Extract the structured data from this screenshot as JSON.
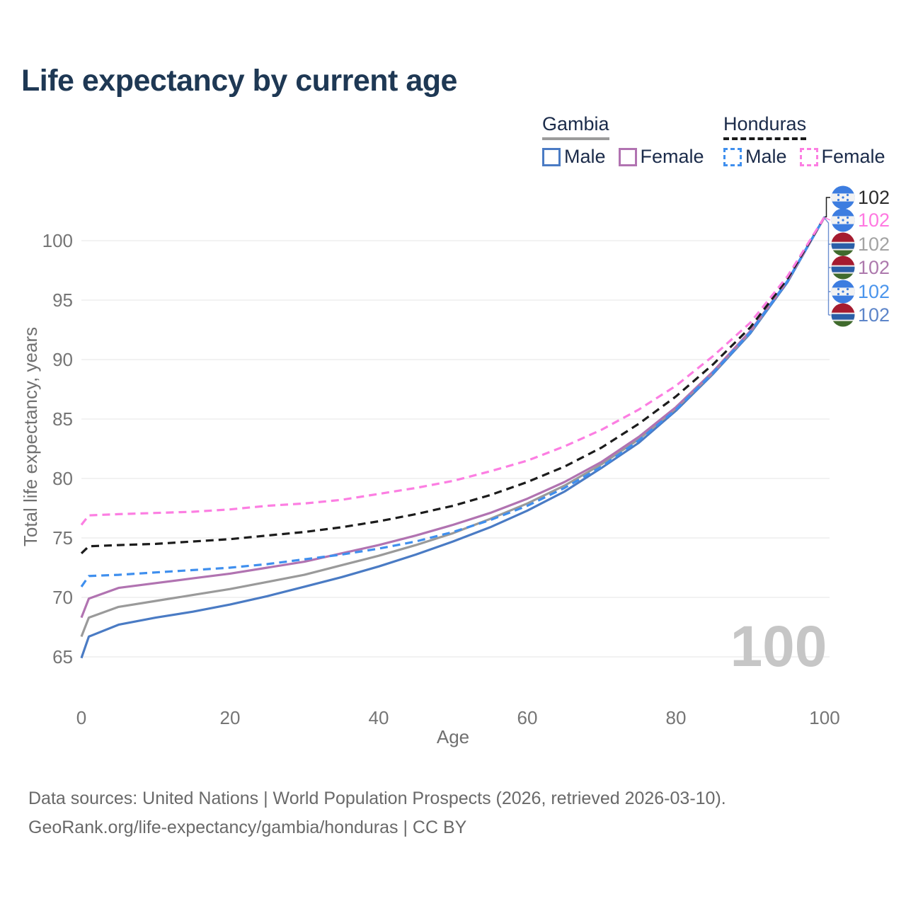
{
  "title": "Life expectancy by current age",
  "legend": {
    "groups": [
      {
        "country": "Gambia",
        "line_style": "solid",
        "line_color": "#9b9b9b",
        "items": [
          {
            "label": "Male",
            "swatch_color": "#4a7bc4",
            "dashed": false
          },
          {
            "label": "Female",
            "swatch_color": "#b173b1",
            "dashed": false
          }
        ]
      },
      {
        "country": "Honduras",
        "line_style": "dashed",
        "line_color": "#1a1a1a",
        "items": [
          {
            "label": "Male",
            "swatch_color": "#3f8fee",
            "dashed": true
          },
          {
            "label": "Female",
            "swatch_color": "#fc7ee2",
            "dashed": true
          }
        ]
      }
    ]
  },
  "watermark_age_counter": "100",
  "footer": {
    "line1": "Data sources: United Nations | World Population Prospects (2026, retrieved 2026-03-10).",
    "line2": "GeoRank.org/life-expectancy/gambia/honduras | CC BY"
  },
  "chart_data": {
    "type": "line",
    "title": "Life expectancy by current age",
    "xlabel": "Age",
    "ylabel": "Total life expectancy, years",
    "x_ticks": [
      0,
      20,
      40,
      60,
      80,
      100
    ],
    "y_ticks": [
      65,
      70,
      75,
      80,
      85,
      90,
      95,
      100
    ],
    "xlim": [
      0,
      100
    ],
    "ylim": [
      63.5,
      104
    ],
    "grid": "horizontal",
    "legend_position": "top-right",
    "x": [
      0,
      1,
      5,
      10,
      15,
      20,
      25,
      30,
      35,
      40,
      45,
      50,
      55,
      60,
      65,
      70,
      75,
      80,
      85,
      90,
      95,
      100
    ],
    "series": [
      {
        "id": "gambia-male",
        "name": "Gambia Male",
        "country": "Gambia",
        "sex": "Male",
        "color": "#4a7bc4",
        "dashed": false,
        "flag": "gambia",
        "end_label": "102",
        "end_label_color": "#5d85c9",
        "label_row": 5,
        "values": [
          64.9,
          66.7,
          67.7,
          68.3,
          68.8,
          69.4,
          70.1,
          70.9,
          71.7,
          72.6,
          73.6,
          74.7,
          75.9,
          77.3,
          78.9,
          80.9,
          83.0,
          85.7,
          88.8,
          92.2,
          96.5,
          102
        ]
      },
      {
        "id": "gambia-total",
        "name": "Gambia",
        "country": "Gambia",
        "sex": "Both",
        "color": "#9a9a9a",
        "dashed": false,
        "flag": "gambia",
        "end_label": "102",
        "end_label_color": "#a3a3a3",
        "label_row": 2,
        "values": [
          66.7,
          68.3,
          69.2,
          69.7,
          70.2,
          70.7,
          71.3,
          71.9,
          72.7,
          73.5,
          74.4,
          75.4,
          76.6,
          77.9,
          79.4,
          81.2,
          83.3,
          85.9,
          88.9,
          92.3,
          96.6,
          102
        ]
      },
      {
        "id": "gambia-female",
        "name": "Gambia Female",
        "country": "Gambia",
        "sex": "Female",
        "color": "#b173b1",
        "dashed": false,
        "flag": "gambia",
        "end_label": "102",
        "end_label_color": "#ad79ad",
        "label_row": 3,
        "values": [
          68.3,
          69.9,
          70.8,
          71.2,
          71.6,
          72.0,
          72.5,
          73.0,
          73.7,
          74.4,
          75.2,
          76.1,
          77.1,
          78.3,
          79.7,
          81.4,
          83.5,
          86.0,
          89.0,
          92.4,
          96.6,
          102
        ]
      },
      {
        "id": "honduras-male",
        "name": "Honduras Male",
        "country": "Honduras",
        "sex": "Male",
        "color": "#3f8fee",
        "dashed": true,
        "flag": "honduras",
        "end_label": "102",
        "end_label_color": "#4b95ec",
        "label_row": 4,
        "values": [
          70.9,
          71.8,
          71.9,
          72.1,
          72.3,
          72.5,
          72.8,
          73.2,
          73.6,
          74.1,
          74.7,
          75.5,
          76.5,
          77.7,
          79.2,
          81.0,
          83.2,
          85.8,
          88.9,
          92.3,
          96.6,
          102
        ]
      },
      {
        "id": "honduras-total",
        "name": "Honduras",
        "country": "Honduras",
        "sex": "Both",
        "color": "#1c1c1c",
        "dashed": true,
        "flag": "honduras",
        "end_label": "102",
        "end_label_color": "#2b2b2b",
        "label_row": 0,
        "values": [
          73.7,
          74.3,
          74.4,
          74.5,
          74.7,
          74.9,
          75.2,
          75.5,
          75.9,
          76.4,
          77.0,
          77.7,
          78.6,
          79.7,
          81.0,
          82.6,
          84.6,
          86.9,
          89.6,
          92.7,
          96.8,
          102
        ]
      },
      {
        "id": "honduras-female",
        "name": "Honduras Female",
        "country": "Honduras",
        "sex": "Female",
        "color": "#fc7ee2",
        "dashed": true,
        "flag": "honduras",
        "end_label": "102",
        "end_label_color": "#ff79e1",
        "label_row": 1,
        "values": [
          76.1,
          76.9,
          77.0,
          77.1,
          77.2,
          77.4,
          77.7,
          77.9,
          78.2,
          78.7,
          79.2,
          79.8,
          80.6,
          81.5,
          82.7,
          84.1,
          85.8,
          87.8,
          90.3,
          93.1,
          97.0,
          102
        ]
      }
    ]
  }
}
